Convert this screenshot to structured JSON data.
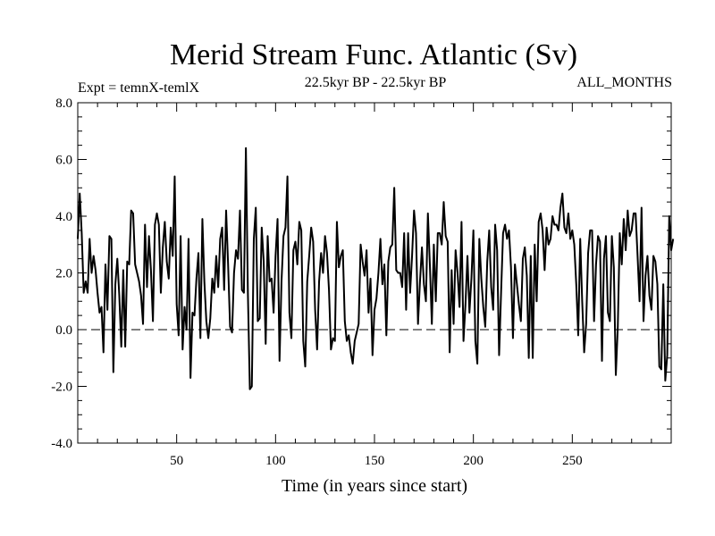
{
  "chart_data": {
    "type": "line",
    "title": "Merid Stream Func. Atlantic (Sv)",
    "subtitle_left": "Expt = temnX-temlX",
    "subtitle_center": "22.5kyr BP - 22.5kyr BP",
    "subtitle_right": "ALL_MONTHS",
    "xlabel": "Time (in years since start)",
    "ylabel": "",
    "xlim": [
      0,
      300
    ],
    "ylim": [
      -4.0,
      8.0
    ],
    "x_ticks": [
      50,
      100,
      150,
      200,
      250
    ],
    "x_tick_labels": [
      "50",
      "100",
      "150",
      "200",
      "250"
    ],
    "y_ticks": [
      -4.0,
      -2.0,
      0.0,
      2.0,
      4.0,
      6.0,
      8.0
    ],
    "y_tick_labels": [
      "-4.0",
      "-2.0",
      "0.0",
      "2.0",
      "4.0",
      "6.0",
      "8.0"
    ],
    "reference_line": {
      "y": 0.0,
      "style": "dashed"
    },
    "grid": false,
    "series": [
      {
        "name": "Merid Stream Func. Atlantic",
        "x_start": 0,
        "x_step": 1,
        "values": [
          3.2,
          4.8,
          3.4,
          1.3,
          1.7,
          1.3,
          3.2,
          2.0,
          2.6,
          2.1,
          1.3,
          0.6,
          0.8,
          -0.8,
          2.3,
          0.7,
          3.3,
          3.2,
          -1.5,
          1.6,
          2.5,
          1.2,
          -0.6,
          2.1,
          -0.6,
          2.4,
          2.3,
          4.2,
          4.1,
          2.3,
          2.0,
          1.7,
          1.2,
          0.2,
          3.7,
          1.5,
          3.3,
          2.1,
          0.3,
          3.7,
          4.1,
          3.7,
          1.3,
          2.9,
          3.8,
          2.4,
          1.8,
          3.6,
          2.6,
          5.4,
          0.9,
          -0.2,
          3.3,
          -0.7,
          0.8,
          0.0,
          3.2,
          -1.7,
          0.6,
          0.5,
          1.8,
          2.7,
          -0.3,
          3.9,
          1.7,
          0.3,
          -0.3,
          0.4,
          1.8,
          1.3,
          2.6,
          1.5,
          3.2,
          3.6,
          1.4,
          4.2,
          2.3,
          0.1,
          -0.1,
          2.0,
          2.8,
          2.5,
          4.2,
          1.4,
          1.3,
          6.4,
          1.3,
          -2.1,
          -2.0,
          3.2,
          4.3,
          0.3,
          0.4,
          3.6,
          2.4,
          -0.5,
          3.3,
          1.7,
          1.8,
          0.6,
          2.6,
          3.9,
          -1.1,
          1.7,
          3.3,
          3.6,
          5.4,
          0.6,
          -0.3,
          2.8,
          3.1,
          2.3,
          3.8,
          3.5,
          -0.4,
          -1.3,
          1.7,
          2.6,
          3.6,
          3.1,
          0.7,
          -0.7,
          1.7,
          2.7,
          2.0,
          3.3,
          2.7,
          1.4,
          -0.7,
          -0.3,
          -0.4,
          3.8,
          2.2,
          2.6,
          2.8,
          0.3,
          -0.4,
          -0.2,
          -0.8,
          -1.2,
          -0.4,
          -0.1,
          0.2,
          3.0,
          2.4,
          1.9,
          2.8,
          0.6,
          1.8,
          -0.9,
          0.7,
          1.1,
          2.0,
          3.2,
          1.6,
          2.3,
          -0.2,
          2.4,
          2.9,
          3.0,
          5.0,
          2.1,
          2.0,
          2.0,
          1.5,
          3.4,
          0.7,
          3.4,
          1.3,
          2.6,
          4.2,
          3.4,
          0.2,
          1.7,
          2.9,
          1.6,
          1.0,
          4.1,
          2.3,
          0.2,
          3.0,
          1.0,
          3.4,
          3.4,
          3.0,
          4.5,
          3.3,
          3.1,
          -0.8,
          2.1,
          0.2,
          2.8,
          2.0,
          0.8,
          3.8,
          -0.4,
          0.9,
          2.6,
          0.6,
          1.8,
          3.5,
          -0.4,
          -1.2,
          3.2,
          1.8,
          0.8,
          0.1,
          2.4,
          3.5,
          1.5,
          0.7,
          3.7,
          2.8,
          -0.9,
          1.3,
          3.4,
          3.7,
          3.2,
          3.5,
          2.2,
          -0.3,
          2.3,
          1.6,
          0.9,
          0.3,
          2.5,
          2.9,
          1.9,
          -1.0,
          2.6,
          -1.0,
          3.0,
          1.0,
          3.8,
          4.1,
          3.5,
          2.1,
          3.6,
          3.0,
          3.2,
          4.0,
          3.7,
          3.7,
          3.5,
          4.3,
          4.8,
          3.6,
          3.4,
          4.1,
          3.2,
          3.5,
          3.0,
          1.6,
          -0.2,
          3.2,
          1.0,
          -0.8,
          0.2,
          2.7,
          3.5,
          3.5,
          0.3,
          2.3,
          3.3,
          3.1,
          -1.1,
          2.5,
          3.3,
          0.6,
          0.3,
          3.3,
          2.2,
          -1.6,
          0.1,
          3.4,
          2.3,
          3.9,
          2.8,
          4.2,
          3.3,
          3.5,
          4.1,
          4.1,
          2.6,
          1.0,
          4.3,
          0.3,
          1.9,
          2.6,
          1.2,
          0.7,
          2.6,
          2.4,
          1.6,
          -1.3,
          -1.4,
          1.6,
          -1.8,
          -0.9,
          4.0,
          2.8,
          3.2
        ]
      }
    ]
  }
}
